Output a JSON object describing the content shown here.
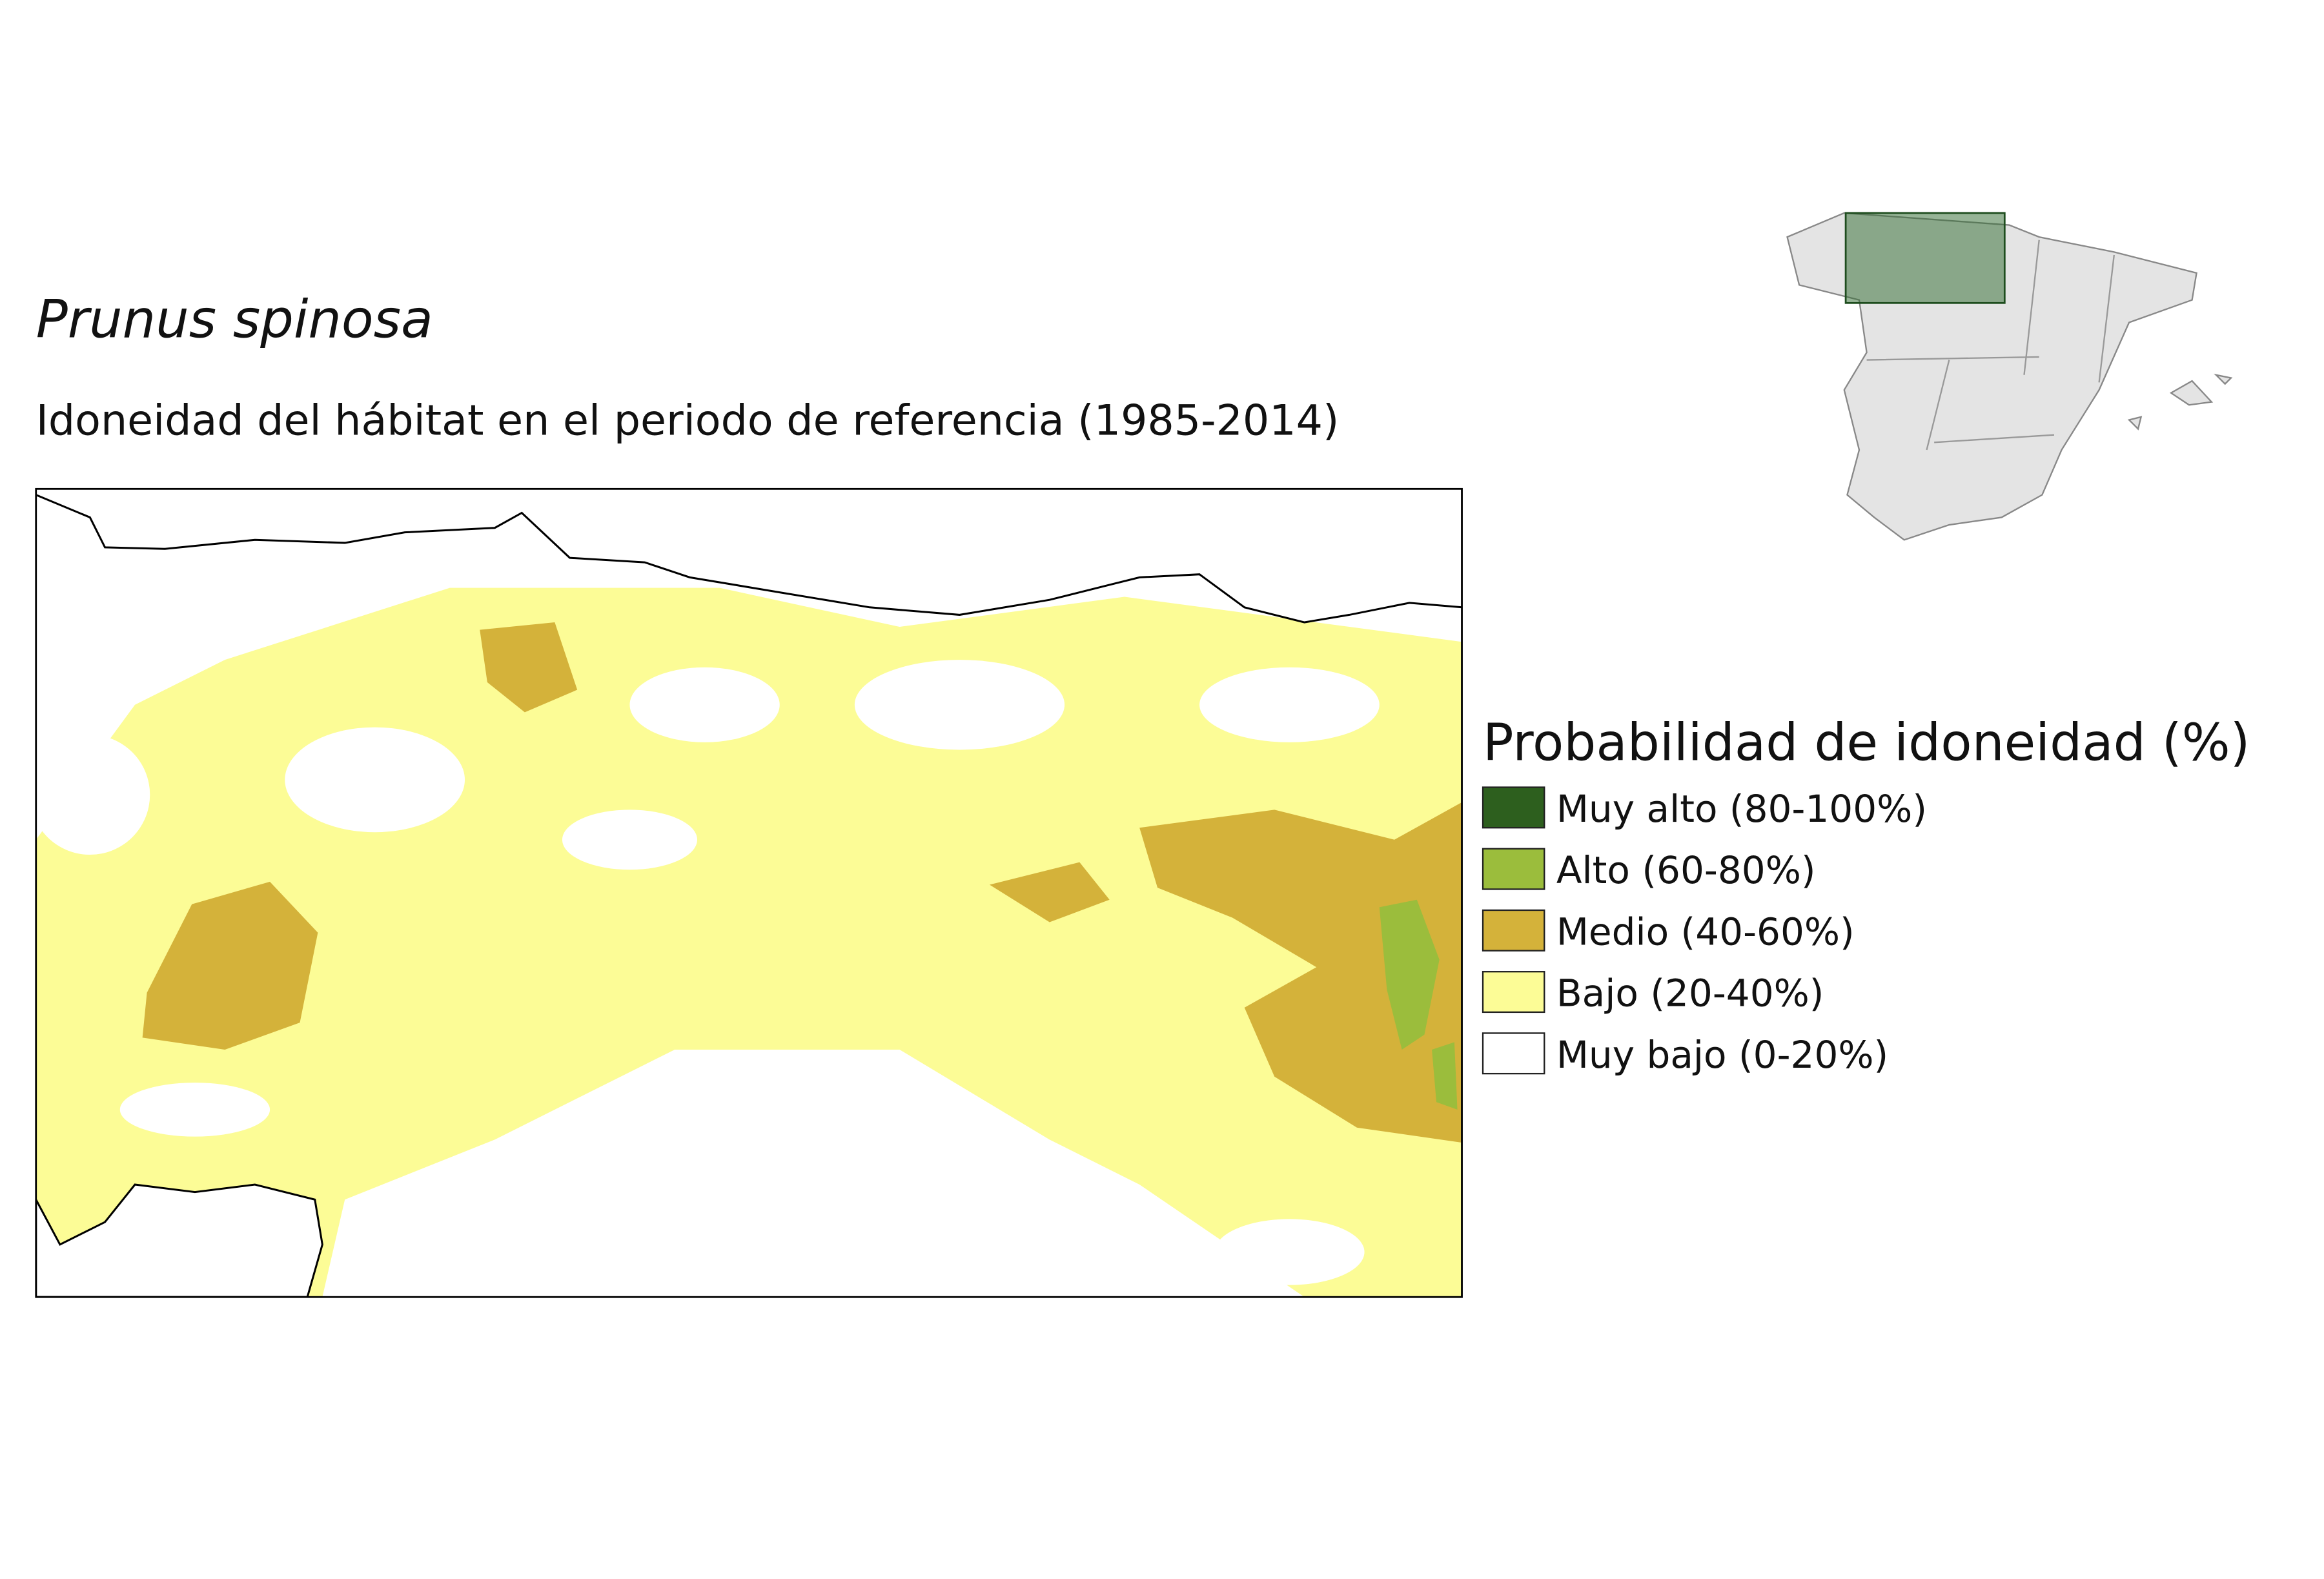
{
  "title": "Prunus spinosa",
  "subtitle": "Idoneidad del hábitat en el periodo de referencia (1985-2014)",
  "legend": {
    "title": "Probabilidad de idoneidad (%)",
    "items": [
      {
        "label": "Muy alto (80-100%)",
        "color": "#2d5f1e"
      },
      {
        "label": "Alto (60-80%)",
        "color": "#9bbd3c"
      },
      {
        "label": "Medio (40-60%)",
        "color": "#d4b23a"
      },
      {
        "label": "Bajo (20-40%)",
        "color": "#fcfc96"
      },
      {
        "label": "Muy bajo (0-20%)",
        "color": "#ffffff"
      }
    ]
  }
}
